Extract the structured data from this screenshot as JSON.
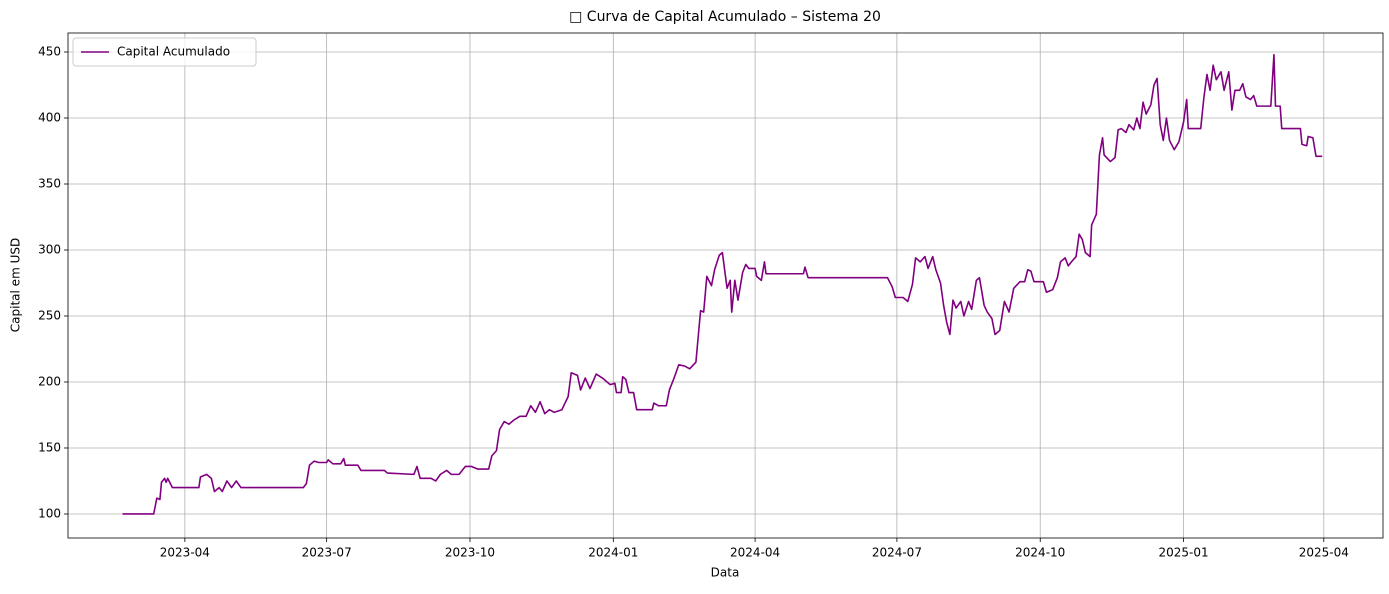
{
  "chart_data": {
    "type": "line",
    "title": "□ Curva de Capital Acumulado – Sistema 20",
    "xlabel": "Data",
    "ylabel": "Capital em USD",
    "x": [
      "2023-02-20",
      "2023-03-12",
      "2023-03-14",
      "2023-03-16",
      "2023-03-17",
      "2023-03-19",
      "2023-03-20",
      "2023-03-21",
      "2023-03-24",
      "2023-04-10",
      "2023-04-11",
      "2023-04-15",
      "2023-04-18",
      "2023-04-20",
      "2023-04-23",
      "2023-04-25",
      "2023-04-28",
      "2023-05-01",
      "2023-05-04",
      "2023-05-07",
      "2023-06-16",
      "2023-06-18",
      "2023-06-20",
      "2023-06-23",
      "2023-06-26",
      "2023-07-01",
      "2023-07-02",
      "2023-07-05",
      "2023-07-10",
      "2023-07-12",
      "2023-07-13",
      "2023-07-21",
      "2023-07-23",
      "2023-08-07",
      "2023-08-09",
      "2023-08-26",
      "2023-08-28",
      "2023-08-30",
      "2023-09-06",
      "2023-09-09",
      "2023-09-12",
      "2023-09-16",
      "2023-09-19",
      "2023-09-24",
      "2023-09-28",
      "2023-10-02",
      "2023-10-06",
      "2023-10-13",
      "2023-10-15",
      "2023-10-18",
      "2023-10-20",
      "2023-10-23",
      "2023-10-26",
      "2023-10-29",
      "2023-11-02",
      "2023-11-06",
      "2023-11-09",
      "2023-11-12",
      "2023-11-15",
      "2023-11-18",
      "2023-11-21",
      "2023-11-24",
      "2023-11-29",
      "2023-12-03",
      "2023-12-05",
      "2023-12-09",
      "2023-12-11",
      "2023-12-14",
      "2023-12-17",
      "2023-12-21",
      "2023-12-25",
      "2023-12-28",
      "2023-12-30",
      "2024-01-02",
      "2024-01-03",
      "2024-01-06",
      "2024-01-07",
      "2024-01-09",
      "2024-01-11",
      "2024-01-14",
      "2024-01-16",
      "2024-01-26",
      "2024-01-27",
      "2024-01-30",
      "2024-02-04",
      "2024-02-06",
      "2024-02-09",
      "2024-02-12",
      "2024-02-16",
      "2024-02-19",
      "2024-02-23",
      "2024-02-26",
      "2024-02-28",
      "2024-03-01",
      "2024-03-04",
      "2024-03-06",
      "2024-03-09",
      "2024-03-11",
      "2024-03-14",
      "2024-03-16",
      "2024-03-17",
      "2024-03-19",
      "2024-03-21",
      "2024-03-24",
      "2024-03-26",
      "2024-03-28",
      "2024-04-01",
      "2024-04-02",
      "2024-04-05",
      "2024-04-07",
      "2024-04-08",
      "2024-05-02",
      "2024-05-03",
      "2024-05-05",
      "2024-06-25",
      "2024-06-28",
      "2024-06-30",
      "2024-07-05",
      "2024-07-08",
      "2024-07-11",
      "2024-07-13",
      "2024-07-16",
      "2024-07-19",
      "2024-07-21",
      "2024-07-24",
      "2024-07-26",
      "2024-07-29",
      "2024-07-31",
      "2024-08-02",
      "2024-08-04",
      "2024-08-06",
      "2024-08-08",
      "2024-08-11",
      "2024-08-13",
      "2024-08-16",
      "2024-08-18",
      "2024-08-21",
      "2024-08-23",
      "2024-08-26",
      "2024-08-28",
      "2024-08-31",
      "2024-09-02",
      "2024-09-05",
      "2024-09-08",
      "2024-09-11",
      "2024-09-14",
      "2024-09-18",
      "2024-09-21",
      "2024-09-23",
      "2024-09-25",
      "2024-09-27",
      "2024-10-03",
      "2024-10-05",
      "2024-10-09",
      "2024-10-12",
      "2024-10-14",
      "2024-10-17",
      "2024-10-19",
      "2024-10-21",
      "2024-10-24",
      "2024-10-26",
      "2024-10-28",
      "2024-10-30",
      "2024-11-02",
      "2024-11-03",
      "2024-11-06",
      "2024-11-08",
      "2024-11-10",
      "2024-11-11",
      "2024-11-15",
      "2024-11-18",
      "2024-11-20",
      "2024-11-22",
      "2024-11-25",
      "2024-11-27",
      "2024-11-30",
      "2024-12-02",
      "2024-12-04",
      "2024-12-06",
      "2024-12-08",
      "2024-12-11",
      "2024-12-13",
      "2024-12-15",
      "2024-12-17",
      "2024-12-19",
      "2024-12-21",
      "2024-12-23",
      "2024-12-26",
      "2024-12-29",
      "2025-01-01",
      "2025-01-03",
      "2025-01-04",
      "2025-01-12",
      "2025-01-14",
      "2025-01-16",
      "2025-01-18",
      "2025-01-20",
      "2025-01-22",
      "2025-01-25",
      "2025-01-27",
      "2025-01-30",
      "2025-02-01",
      "2025-02-03",
      "2025-02-06",
      "2025-02-08",
      "2025-02-10",
      "2025-02-13",
      "2025-02-15",
      "2025-02-17",
      "2025-02-26",
      "2025-02-28",
      "2025-03-01",
      "2025-03-04",
      "2025-03-05",
      "2025-03-17",
      "2025-03-18",
      "2025-03-21",
      "2025-03-22",
      "2025-03-25",
      "2025-03-27",
      "2025-03-31"
    ],
    "series": [
      {
        "name": "Capital Acumulado",
        "color": "#800080",
        "values": [
          100,
          100,
          112,
          111,
          124,
          127,
          124,
          127,
          120,
          120,
          128,
          130,
          127,
          117,
          120,
          117,
          125,
          120,
          125,
          120,
          120,
          123,
          137,
          140,
          139,
          139,
          141,
          138,
          138,
          142,
          137,
          137,
          133,
          133,
          131,
          130,
          136,
          127,
          127,
          125,
          130,
          133,
          130,
          130,
          136,
          136,
          134,
          134,
          144,
          148,
          164,
          170,
          168,
          171,
          174,
          174,
          182,
          177,
          185,
          176,
          179,
          177,
          179,
          189,
          207,
          205,
          194,
          203,
          195,
          206,
          203,
          200,
          198,
          199,
          192,
          192,
          204,
          202,
          192,
          192,
          179,
          179,
          184,
          182,
          182,
          194,
          203,
          213,
          212,
          210,
          215,
          254,
          253,
          280,
          273,
          285,
          296,
          298,
          271,
          277,
          253,
          277,
          262,
          283,
          289,
          286,
          286,
          280,
          277,
          291,
          282,
          282,
          287,
          279,
          279,
          272,
          264,
          264,
          261,
          274,
          294,
          291,
          295,
          286,
          295,
          285,
          275,
          258,
          245,
          236,
          262,
          256,
          261,
          250,
          261,
          255,
          277,
          279,
          258,
          253,
          248,
          236,
          239,
          261,
          253,
          271,
          276,
          276,
          285,
          284,
          276,
          276,
          268,
          270,
          279,
          291,
          294,
          288,
          291,
          295,
          312,
          308,
          298,
          295,
          319,
          327,
          372,
          385,
          372,
          367,
          370,
          391,
          392,
          389,
          395,
          391,
          400,
          392,
          412,
          403,
          410,
          425,
          430,
          395,
          383,
          400,
          383,
          376,
          382,
          397,
          414,
          392,
          392,
          415,
          433,
          421,
          440,
          429,
          435,
          421,
          435,
          406,
          421,
          421,
          426,
          416,
          414,
          417,
          409,
          409,
          448,
          409,
          409,
          392,
          392,
          380,
          379,
          386,
          385,
          371,
          371
        ]
      }
    ],
    "xlim": [
      "2023-01-16",
      "2025-05-09"
    ],
    "xticks": [
      "2023-04",
      "2023-07",
      "2023-10",
      "2024-01",
      "2024-04",
      "2024-07",
      "2024-10",
      "2025-01",
      "2025-04"
    ],
    "ylim": [
      81.8,
      464.4
    ],
    "yticks": [
      100,
      150,
      200,
      250,
      300,
      350,
      400,
      450
    ],
    "grid": true,
    "legend": "upper left"
  }
}
